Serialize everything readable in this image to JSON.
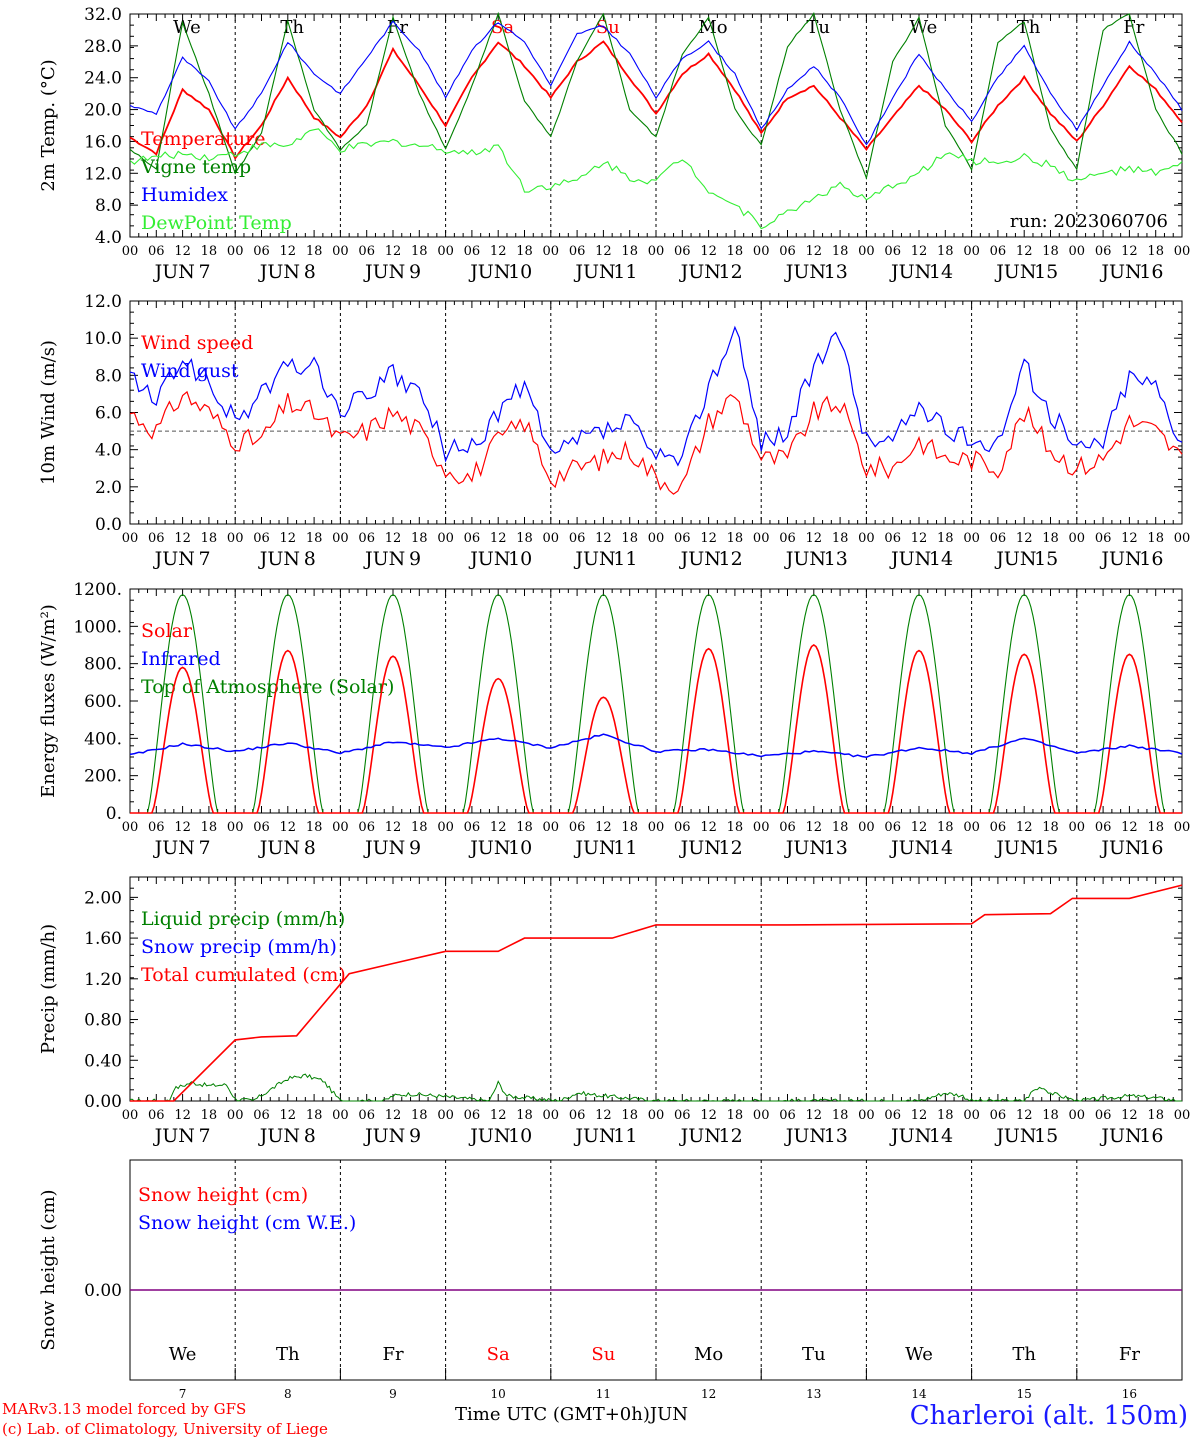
{
  "days_of_week": [
    "We",
    "Th",
    "Fr",
    "Sa",
    "Su",
    "Mo",
    "Tu",
    "We",
    "Th",
    "Fr"
  ],
  "weekend_days": [
    "Sa",
    "Su"
  ],
  "day_numbers": [
    "7",
    "8",
    "9",
    "10",
    "11",
    "12",
    "13",
    "14",
    "15",
    "16"
  ],
  "month_label": "JUN",
  "hour_ticks": [
    "00",
    "06",
    "12",
    "18"
  ],
  "final_tick": "00",
  "colors": {
    "red": "#ff0000",
    "blue": "#0000ff",
    "green": "#008000",
    "lightgreen": "#33ee33",
    "purple": "#800080",
    "gray": "#555555"
  },
  "footer": {
    "model_line": "MARv3.13 model forced by GFS",
    "lab_line": "(c) Lab. of Climatology, University of Liege",
    "time_label": "Time UTC (GMT+0h)",
    "time_month": "JUN",
    "station": "Charleroi (alt. 150m)"
  },
  "chart_data": [
    {
      "id": "temp",
      "type": "line",
      "ylabel": "2m Temp. (°C)",
      "ylim": [
        4.0,
        32.0
      ],
      "ytick_labels": [
        "4.0",
        "8.0",
        "12.0",
        "16.0",
        "20.0",
        "24.0",
        "28.0",
        "32.0"
      ],
      "annotation": "run: 2023060706",
      "legend": [
        "Temperature",
        "Vigne temp",
        "Humidex",
        "DewPoint Temp"
      ],
      "x_unit": "hours since Jun 7 00 UTC",
      "series": [
        {
          "name": "Temperature",
          "color": "red",
          "x": [
            0,
            6,
            12,
            18,
            24,
            30,
            36,
            42,
            48,
            54,
            60,
            66,
            72,
            78,
            84,
            90,
            96,
            102,
            108,
            114,
            120,
            126,
            132,
            138,
            144,
            150,
            156,
            162,
            168,
            174,
            180,
            186,
            192,
            198,
            204,
            210,
            216,
            222,
            228,
            234,
            240
          ],
          "y": [
            16.5,
            14.5,
            22.5,
            20.0,
            14.0,
            18.0,
            24.0,
            19.0,
            16.5,
            20.5,
            27.5,
            23.0,
            18.0,
            24.0,
            28.5,
            25.5,
            21.5,
            26.0,
            28.5,
            24.0,
            19.5,
            24.5,
            27.0,
            22.5,
            17.0,
            21.5,
            23.0,
            19.0,
            15.0,
            19.0,
            23.0,
            20.0,
            16.0,
            20.5,
            24.0,
            19.5,
            16.0,
            20.5,
            25.5,
            22.5,
            18.5
          ]
        },
        {
          "name": "Vigne temp",
          "color": "green",
          "x": [
            0,
            6,
            12,
            18,
            24,
            30,
            36,
            42,
            48,
            54,
            60,
            66,
            72,
            78,
            84,
            90,
            96,
            102,
            108,
            114,
            120,
            126,
            132,
            138,
            144,
            150,
            156,
            162,
            168,
            174,
            180,
            186,
            192,
            198,
            204,
            210,
            216,
            222,
            228,
            234,
            240
          ],
          "y": [
            15.0,
            12.5,
            31.0,
            22.0,
            12.0,
            17.0,
            31.0,
            20.0,
            15.0,
            18.0,
            31.5,
            22.0,
            15.0,
            23.0,
            32.0,
            21.0,
            16.5,
            26.0,
            32.0,
            20.0,
            16.5,
            27.0,
            31.5,
            20.0,
            15.5,
            28.0,
            32.0,
            20.0,
            11.5,
            26.0,
            31.5,
            18.0,
            12.5,
            28.5,
            31.0,
            17.5,
            12.5,
            30.0,
            32.0,
            20.0,
            14.5
          ]
        },
        {
          "name": "Humidex",
          "color": "blue",
          "x": [
            0,
            6,
            12,
            18,
            24,
            30,
            36,
            42,
            48,
            54,
            60,
            66,
            72,
            78,
            84,
            90,
            96,
            102,
            108,
            114,
            120,
            126,
            132,
            138,
            144,
            150,
            156,
            162,
            168,
            174,
            180,
            186,
            192,
            198,
            204,
            210,
            216,
            222,
            228,
            234,
            240
          ],
          "y": [
            20.5,
            19.5,
            26.5,
            23.5,
            17.5,
            22.0,
            28.5,
            24.5,
            22.0,
            26.5,
            31.0,
            27.5,
            21.5,
            27.5,
            31.0,
            28.5,
            23.0,
            29.5,
            30.5,
            27.0,
            21.5,
            26.5,
            28.5,
            24.5,
            17.5,
            22.5,
            25.5,
            21.5,
            15.5,
            21.5,
            27.0,
            22.5,
            18.5,
            24.0,
            28.0,
            22.0,
            17.5,
            23.0,
            28.5,
            24.5,
            20.0
          ]
        },
        {
          "name": "DewPoint Temp",
          "color": "lightgreen",
          "x": [
            0,
            6,
            12,
            18,
            24,
            30,
            36,
            42,
            48,
            54,
            60,
            66,
            72,
            78,
            84,
            90,
            96,
            102,
            108,
            114,
            120,
            126,
            132,
            138,
            144,
            150,
            156,
            162,
            168,
            174,
            180,
            186,
            192,
            198,
            204,
            210,
            216,
            222,
            228,
            234,
            240
          ],
          "y": [
            13.5,
            14.0,
            14.5,
            14.0,
            14.5,
            15.5,
            15.5,
            17.5,
            15.0,
            15.5,
            16.0,
            15.5,
            15.0,
            14.5,
            15.5,
            10.0,
            10.5,
            11.0,
            13.5,
            11.5,
            11.0,
            14.0,
            10.0,
            8.0,
            5.5,
            7.0,
            9.0,
            10.5,
            8.5,
            10.5,
            12.0,
            14.5,
            13.5,
            13.5,
            14.0,
            13.0,
            11.0,
            12.0,
            12.5,
            12.0,
            13.0
          ]
        }
      ]
    },
    {
      "id": "wind",
      "type": "line",
      "ylabel": "10m Wind (m/s)",
      "ylim": [
        0.0,
        12.0
      ],
      "ytick_labels": [
        "0.0",
        "2.0",
        "4.0",
        "6.0",
        "8.0",
        "10.0",
        "12.0"
      ],
      "reference_line": 5.0,
      "legend": [
        "Wind speed",
        "Wind gust"
      ],
      "series": [
        {
          "name": "Wind speed",
          "color": "red",
          "x": [
            0,
            6,
            12,
            18,
            24,
            30,
            36,
            42,
            48,
            54,
            60,
            66,
            72,
            78,
            84,
            90,
            96,
            102,
            108,
            114,
            120,
            126,
            132,
            138,
            144,
            150,
            156,
            162,
            168,
            174,
            180,
            186,
            192,
            198,
            204,
            210,
            216,
            222,
            228,
            234,
            240
          ],
          "y": [
            6.0,
            5.0,
            7.0,
            6.0,
            4.5,
            4.5,
            6.5,
            6.0,
            4.5,
            5.0,
            6.0,
            5.0,
            3.0,
            2.5,
            4.5,
            5.5,
            2.5,
            3.0,
            3.5,
            4.0,
            2.5,
            2.0,
            5.5,
            7.0,
            3.5,
            3.5,
            6.0,
            6.5,
            3.0,
            3.0,
            4.5,
            3.5,
            3.5,
            3.0,
            6.0,
            4.0,
            3.0,
            3.5,
            5.5,
            5.0,
            3.5
          ]
        },
        {
          "name": "Wind gust",
          "color": "blue",
          "x": [
            0,
            6,
            12,
            18,
            24,
            30,
            36,
            42,
            48,
            54,
            60,
            66,
            72,
            78,
            84,
            90,
            96,
            102,
            108,
            114,
            120,
            126,
            132,
            138,
            144,
            150,
            156,
            162,
            168,
            174,
            180,
            186,
            192,
            198,
            204,
            210,
            216,
            222,
            228,
            234,
            240
          ],
          "y": [
            8.0,
            6.5,
            9.0,
            7.5,
            5.5,
            7.0,
            8.5,
            8.5,
            6.0,
            7.0,
            8.0,
            7.0,
            4.0,
            4.0,
            6.0,
            7.5,
            3.5,
            4.5,
            5.0,
            5.5,
            3.5,
            3.5,
            7.5,
            10.5,
            4.5,
            5.0,
            8.5,
            10.0,
            4.5,
            4.5,
            6.5,
            5.0,
            4.5,
            4.5,
            8.5,
            6.0,
            4.0,
            4.5,
            8.0,
            7.5,
            4.5
          ]
        }
      ]
    },
    {
      "id": "energy",
      "type": "line",
      "ylabel": "Energy fluxes (W/m²)",
      "ylim": [
        0,
        1200
      ],
      "ytick_labels": [
        "0.",
        "200.",
        "400.",
        "600.",
        "800.",
        "1000.",
        "1200."
      ],
      "legend": [
        "Solar",
        "Infrared",
        "Top of Atmosphere (Solar)"
      ],
      "toa_peak": 1170,
      "solar_peaks": [
        780,
        870,
        840,
        720,
        620,
        880,
        900,
        870,
        850,
        850
      ],
      "series": [
        {
          "name": "Infrared",
          "color": "blue",
          "x": [
            0,
            12,
            24,
            36,
            48,
            60,
            72,
            84,
            96,
            108,
            120,
            132,
            144,
            156,
            168,
            180,
            192,
            204,
            216,
            228,
            240
          ],
          "y": [
            310,
            370,
            330,
            375,
            320,
            380,
            350,
            400,
            350,
            420,
            330,
            340,
            305,
            330,
            300,
            350,
            320,
            400,
            320,
            360,
            320
          ]
        }
      ]
    },
    {
      "id": "precip",
      "type": "line",
      "ylabel": "Precip (mm/h)",
      "ylim": [
        0.0,
        2.2
      ],
      "ytick_labels": [
        "0.00",
        "0.40",
        "0.80",
        "1.20",
        "1.60",
        "2.00"
      ],
      "legend": [
        "Liquid precip (mm/h)",
        "Snow precip (mm/h)",
        "Total cumulated (cm)"
      ],
      "series": [
        {
          "name": "Total cumulated (cm)",
          "color": "red",
          "x": [
            0,
            10,
            24,
            30,
            38,
            50,
            60,
            72,
            84,
            90,
            102,
            110,
            120,
            150,
            192,
            195,
            210,
            215,
            228,
            240
          ],
          "y": [
            0,
            0,
            0.6,
            0.63,
            0.64,
            1.25,
            1.35,
            1.47,
            1.47,
            1.6,
            1.6,
            1.6,
            1.73,
            1.73,
            1.74,
            1.83,
            1.84,
            1.99,
            1.99,
            2.12
          ]
        },
        {
          "name": "Liquid precip (mm/h)",
          "color": "green",
          "x": [
            0,
            9,
            10,
            14,
            18,
            22,
            24,
            28,
            36,
            40,
            44,
            48,
            58,
            60,
            64,
            70,
            82,
            84,
            86,
            98,
            102,
            106,
            120,
            180,
            186,
            190,
            192,
            204,
            206,
            208,
            210,
            216,
            228,
            234,
            240
          ],
          "y": [
            0,
            0,
            0.12,
            0.18,
            0.15,
            0.16,
            0.02,
            0,
            0.22,
            0.25,
            0.2,
            0,
            0,
            0.05,
            0.07,
            0.05,
            0,
            0.18,
            0.05,
            0,
            0.08,
            0.06,
            0,
            0,
            0.08,
            0.05,
            0,
            0,
            0.1,
            0.14,
            0.08,
            0,
            0.05,
            0.03,
            0
          ]
        }
      ]
    },
    {
      "id": "snow",
      "type": "line",
      "ylabel": "Snow height (cm)",
      "ytick_labels": [
        "0.00"
      ],
      "legend": [
        "Snow height (cm)",
        "Snow height (cm W.E.)"
      ],
      "series": [
        {
          "name": "Snow height (cm)",
          "color": "purple",
          "x": [
            0,
            240
          ],
          "y": [
            0,
            0
          ]
        }
      ]
    }
  ]
}
